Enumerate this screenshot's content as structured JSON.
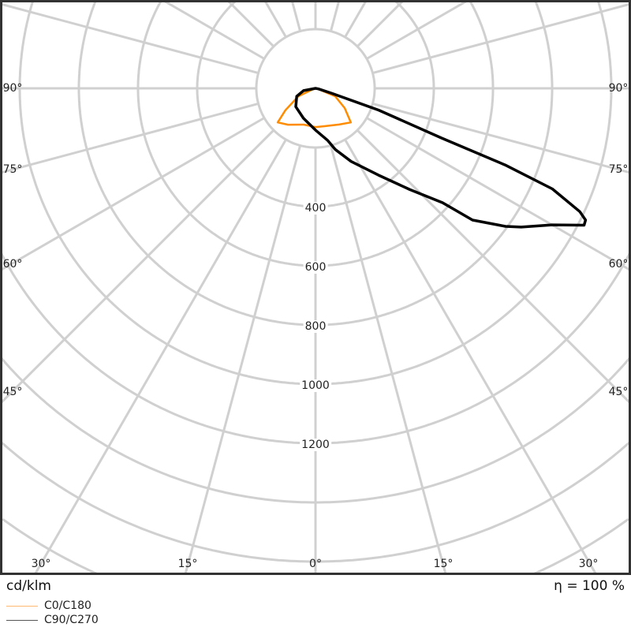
{
  "chart_data": {
    "type": "polar",
    "unit_label": "cd/klm",
    "efficiency_label": "η = 100 %",
    "radial_ticks": [
      400,
      600,
      800,
      1000,
      1200
    ],
    "radial_rings": [
      200,
      400,
      600,
      800,
      1000,
      1200,
      1400,
      1600,
      1800,
      2000
    ],
    "angle_labels_side": [
      "90°",
      "75°",
      "60°",
      "45°"
    ],
    "angle_labels_bottom": [
      "30°",
      "15°",
      "0°",
      "15°",
      "30°"
    ],
    "grid": true,
    "legend_placement": "bottom-left",
    "series": [
      {
        "name": "C0/C180",
        "color": "#ff8c00",
        "legend_color": "#ffb870",
        "gamma": [
          -75,
          -68,
          -65,
          -54,
          -48,
          -37,
          -18,
          0,
          12,
          33,
          46,
          56,
          68,
          75
        ],
        "values": [
          0,
          14,
          64,
          126,
          172,
          154,
          129,
          131,
          131,
          146,
          166,
          119,
          72,
          10
        ]
      },
      {
        "name": "C90/C270",
        "color": "#000000",
        "legend_color": "#555555",
        "gamma": [
          -90,
          -79,
          -67,
          -47,
          -22,
          0,
          13,
          18,
          26,
          36,
          43,
          48,
          50,
          54,
          56,
          60,
          63,
          64,
          65,
          67,
          68,
          68.5,
          71,
          73,
          80
        ],
        "values": [
          0,
          41,
          69,
          91,
          109,
          141,
          180,
          218,
          275,
          363,
          468,
          578,
          693,
          794,
          839,
          923,
          1019,
          1016,
          986,
          870,
          691,
          459,
          226,
          56,
          10
        ]
      }
    ]
  }
}
